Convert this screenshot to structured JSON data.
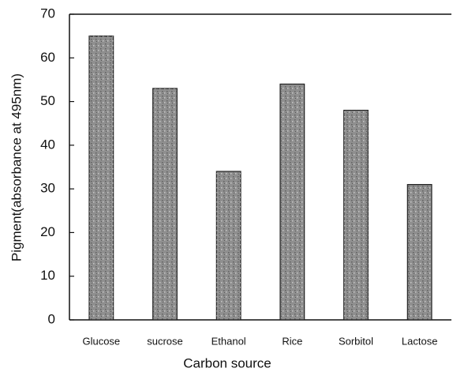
{
  "chart_data": {
    "type": "bar",
    "x_label": "Carbon source",
    "y_label": "Pigment(absorbance at 495nm)",
    "categories": [
      "Glucose",
      "sucrose",
      "Ethanol",
      "Rice",
      "Sorbitol",
      "Lactose"
    ],
    "values": [
      65,
      53,
      34,
      54,
      48,
      31
    ],
    "color": "#8f8f8f",
    "ylim": [
      0,
      70
    ],
    "yticks": [
      0,
      10,
      20,
      30,
      40,
      50,
      60,
      70
    ]
  }
}
